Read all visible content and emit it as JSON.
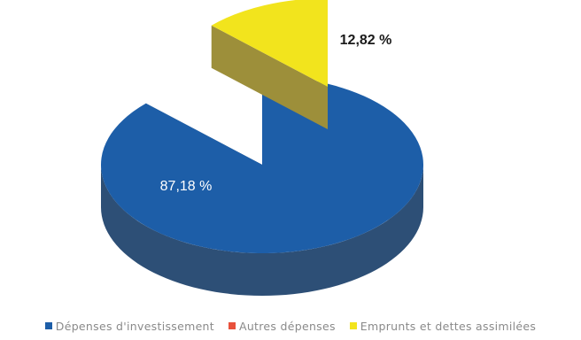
{
  "chart_data": {
    "type": "pie",
    "title": "",
    "series": [
      {
        "name": "Dépenses d'investissement",
        "value": 87.18,
        "label": "87,18 %",
        "color": "#1d5ea8",
        "side_color": "#2d4f76"
      },
      {
        "name": "Autres dépenses",
        "value": 0,
        "label": "",
        "color": "#e8513c",
        "side_color": "#a83a2a"
      },
      {
        "name": "Emprunts et dettes assimilées",
        "value": 12.82,
        "label": "12,82 %",
        "color": "#f2e41d",
        "side_color": "#9d8f3a"
      }
    ],
    "legend_position": "bottom",
    "style": "3d-exploded"
  }
}
